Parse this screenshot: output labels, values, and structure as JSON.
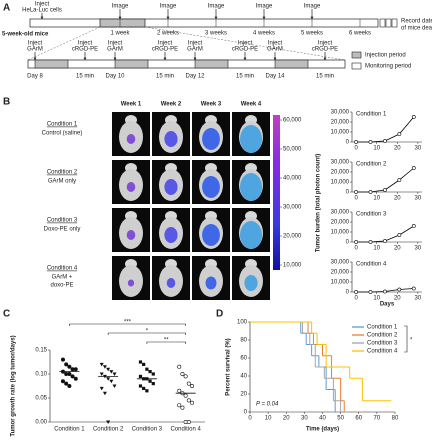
{
  "panels": [
    "A",
    "B",
    "C",
    "D"
  ],
  "timeline": {
    "cells": [
      "Inject",
      "HeLa-Luc cells"
    ],
    "images": [
      "Image",
      "Image",
      "Image",
      "Image",
      "Image"
    ],
    "weeks": [
      "1 week",
      "2 weeks",
      "3 weeks",
      "4 weeks",
      "5 weeks",
      "6 weeks"
    ],
    "mice": "5-week-old mice",
    "end": [
      "Record date",
      "of mice death"
    ],
    "blocks": [
      {
        "first": [
          "Inject",
          "GArM"
        ],
        "second": [
          "Inject",
          "cRGD-PE"
        ],
        "day": "Day 8",
        "delay": "15 min"
      },
      {
        "first": [
          "Inject",
          "GArM"
        ],
        "second": [
          "Inject",
          "cRGD-PE"
        ],
        "day": "Day 10",
        "delay": "15 min"
      },
      {
        "first": [
          "Inject",
          "GArM"
        ],
        "second": [
          "Inject",
          "cRGD-PE"
        ],
        "day": "Day 12",
        "delay": "15 min"
      },
      {
        "first": [
          "Inject",
          "GArM"
        ],
        "second": [
          "Inject",
          "cRGD-PE"
        ],
        "day": "Day 14",
        "delay": "15 min"
      }
    ],
    "legend": [
      "Injection period",
      "Monitoring period"
    ]
  },
  "imaging": {
    "columns": [
      "Week 1",
      "Week 2",
      "Week 3",
      "Week 4"
    ],
    "rows": [
      {
        "name": "Condition 1",
        "desc": [
          "Control (saline)"
        ]
      },
      {
        "name": "Condition 2",
        "desc": [
          "GArM only"
        ]
      },
      {
        "name": "Condition 3",
        "desc": [
          "Doxo-PE only"
        ]
      },
      {
        "name": "Condition 4",
        "desc": [
          "GArM +",
          "doxo-PE"
        ]
      }
    ],
    "colorbar": {
      "lim": [
        10000,
        60000
      ],
      "ticks": [
        {
          "value": 60000,
          "label": "60,000"
        },
        {
          "value": 50000,
          "label": "50,000"
        },
        {
          "value": 40000,
          "label": "40,000"
        },
        {
          "value": 30000,
          "label": "30,000"
        },
        {
          "value": 20000,
          "label": "20,000"
        },
        {
          "value": 10000,
          "label": "10,000"
        }
      ]
    }
  },
  "chart_data": [
    {
      "type": "line",
      "title": "Condition 1",
      "ylabel": "Tumor burden (total photon count)",
      "color": "#000000",
      "x": [
        0,
        7,
        14,
        21,
        28
      ],
      "values": [
        0,
        0,
        1000,
        8000,
        25000
      ],
      "xlim": [
        -2,
        32
      ],
      "ylim": [
        0,
        30000
      ],
      "xticks": [
        0,
        10,
        20,
        30
      ],
      "yticks": [
        0,
        {
          "value": 10000,
          "label": "10,000"
        },
        {
          "value": 20000,
          "label": "20,000"
        },
        {
          "value": 30000,
          "label": "30,000"
        }
      ]
    },
    {
      "type": "line",
      "title": "Condition 2",
      "color": "#000000",
      "x": [
        0,
        7,
        14,
        21,
        28
      ],
      "values": [
        0,
        0,
        2000,
        12000,
        24000
      ],
      "xlim": [
        -2,
        32
      ],
      "ylim": [
        0,
        30000
      ],
      "xticks": [
        0,
        10,
        20,
        30
      ],
      "yticks": [
        0,
        {
          "value": 10000,
          "label": "10,000"
        },
        {
          "value": 20000,
          "label": "20,000"
        },
        {
          "value": 30000,
          "label": "30,000"
        }
      ]
    },
    {
      "type": "line",
      "title": "Condition 3",
      "color": "#000000",
      "x": [
        0,
        7,
        14,
        21,
        28
      ],
      "values": [
        0,
        0,
        1000,
        7000,
        16000
      ],
      "xlim": [
        -2,
        32
      ],
      "ylim": [
        0,
        30000
      ],
      "xticks": [
        0,
        10,
        20,
        30
      ],
      "yticks": [
        0,
        {
          "value": 10000,
          "label": "10,000"
        },
        {
          "value": 20000,
          "label": "20,000"
        },
        {
          "value": 30000,
          "label": "30,000"
        }
      ]
    },
    {
      "type": "line",
      "title": "Condition 4",
      "xlabel": "Days",
      "color": "#000000",
      "x": [
        0,
        7,
        14,
        21,
        28
      ],
      "values": [
        0,
        0,
        500,
        2500,
        3500
      ],
      "xlim": [
        -2,
        32
      ],
      "ylim": [
        0,
        30000
      ],
      "xticks": [
        0,
        10,
        20,
        30
      ],
      "yticks": [
        0,
        {
          "value": 10000,
          "label": "10,000"
        },
        {
          "value": 20000,
          "label": "20,000"
        },
        {
          "value": 30000,
          "label": "30,000"
        }
      ]
    },
    {
      "type": "strip",
      "ylabel": "Tumor growth rate (log tumor/days)",
      "categories": [
        "Condition 1",
        "Condition 2",
        "Condition 3",
        "Condition 4"
      ],
      "markers": [
        "circle",
        "triangle",
        "square",
        "open-circle"
      ],
      "values": [
        [
          0.13,
          0.12,
          0.115,
          0.11,
          0.11,
          0.105,
          0.1,
          0.1,
          0.095,
          0.09,
          0.085,
          0.08,
          0.075
        ],
        [
          0.12,
          0.115,
          0.11,
          0.105,
          0.1,
          0.1,
          0.095,
          0.09,
          0.085,
          0.075,
          0.07,
          0.06,
          0.0
        ],
        [
          0.125,
          0.12,
          0.11,
          0.105,
          0.1,
          0.095,
          0.09,
          0.09,
          0.085,
          0.08,
          0.075,
          0.07,
          0.065
        ],
        [
          0.115,
          0.1,
          0.095,
          0.08,
          0.075,
          0.065,
          0.06,
          0.055,
          0.045,
          0.04,
          0.035,
          0.03,
          0.0,
          0.0
        ]
      ],
      "medians": [
        0.105,
        0.095,
        0.09,
        0.06
      ],
      "annotations": [
        "***",
        "*",
        "**"
      ],
      "ylim": [
        0,
        0.15
      ],
      "yticks": [
        {
          "value": 0,
          "label": "0.00"
        },
        {
          "value": 0.05,
          "label": "0.05"
        },
        {
          "value": 0.1,
          "label": "0.10"
        },
        {
          "value": 0.15,
          "label": "0.15"
        }
      ]
    },
    {
      "type": "step",
      "xlabel": "Time (days)",
      "ylabel": "Percent survival (%)",
      "series": [
        {
          "name": "Condition 1",
          "color": "#5b9bd5",
          "x": [
            0,
            28,
            31,
            34,
            38,
            42,
            47
          ],
          "values": [
            100,
            87.5,
            75,
            62.5,
            50,
            25,
            0
          ]
        },
        {
          "name": "Condition 2",
          "color": "#ed7d31",
          "x": [
            0,
            32,
            35,
            40,
            45,
            50,
            52
          ],
          "values": [
            100,
            87.5,
            75,
            62.5,
            37.5,
            12.5,
            0
          ]
        },
        {
          "name": "Condition 3",
          "color": "#a5a5a5",
          "x": [
            0,
            29,
            33,
            36,
            41,
            46,
            50
          ],
          "values": [
            100,
            87.5,
            75,
            50,
            37.5,
            12.5,
            0
          ]
        },
        {
          "name": "Condition 4",
          "color": "#ffc000",
          "x": [
            0,
            34,
            37,
            42,
            55,
            62,
            78
          ],
          "values": [
            100,
            87.5,
            75,
            50,
            37.5,
            12.5,
            12.5
          ]
        }
      ],
      "annotations": [
        "P = 0.04",
        "*"
      ],
      "xlim": [
        0,
        80
      ],
      "ylim": [
        0,
        100
      ],
      "xticks": [
        0,
        10,
        20,
        30,
        40,
        50,
        60,
        70,
        80
      ],
      "yticks": [
        0,
        20,
        40,
        60,
        80,
        100
      ]
    }
  ]
}
